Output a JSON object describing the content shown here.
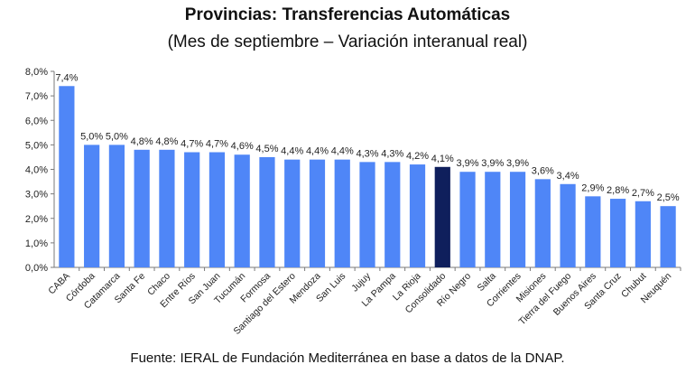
{
  "chart_data": {
    "type": "bar",
    "title": "Provincias: Transferencias Automáticas",
    "subtitle": "(Mes de septiembre – Variación interanual real)",
    "xlabel": "",
    "ylabel": "",
    "ylim": [
      0,
      8
    ],
    "y_ticks": [
      "0,0%",
      "1,0%",
      "2,0%",
      "3,0%",
      "4,0%",
      "5,0%",
      "6,0%",
      "7,0%",
      "8,0%"
    ],
    "categories": [
      "CABA",
      "Córdoba",
      "Catamarca",
      "Santa Fe",
      "Chaco",
      "Entre Ríos",
      "San Juan",
      "Tucumán",
      "Formosa",
      "Santiago del Estero",
      "Mendoza",
      "San Luis",
      "Jujuy",
      "La Pampa",
      "La Rioja",
      "Consolidado",
      "Río Negro",
      "Salta",
      "Corrientes",
      "Misiones",
      "Tierra del Fuego",
      "Buenos Aires",
      "Santa Cruz",
      "Chubut",
      "Neuquén"
    ],
    "values": [
      7.4,
      5.0,
      5.0,
      4.8,
      4.8,
      4.7,
      4.7,
      4.6,
      4.5,
      4.4,
      4.4,
      4.4,
      4.3,
      4.3,
      4.2,
      4.1,
      3.9,
      3.9,
      3.9,
      3.6,
      3.4,
      2.9,
      2.8,
      2.7,
      2.5
    ],
    "data_labels": [
      "7,4%",
      "5,0%",
      "5,0%",
      "4,8%",
      "4,8%",
      "4,7%",
      "4,7%",
      "4,6%",
      "4,5%",
      "4,4%",
      "4,4%",
      "4,4%",
      "4,3%",
      "4,3%",
      "4,2%",
      "4,1%",
      "3,9%",
      "3,9%",
      "3,9%",
      "3,6%",
      "3,4%",
      "2,9%",
      "2,8%",
      "2,7%",
      "2,5%"
    ],
    "highlight_category": "Consolidado",
    "bar_color": "#4f86f7",
    "highlight_color": "#0f1f5c",
    "grid": false
  },
  "source": "Fuente: IERAL de Fundación Mediterránea en base a datos de la DNAP."
}
